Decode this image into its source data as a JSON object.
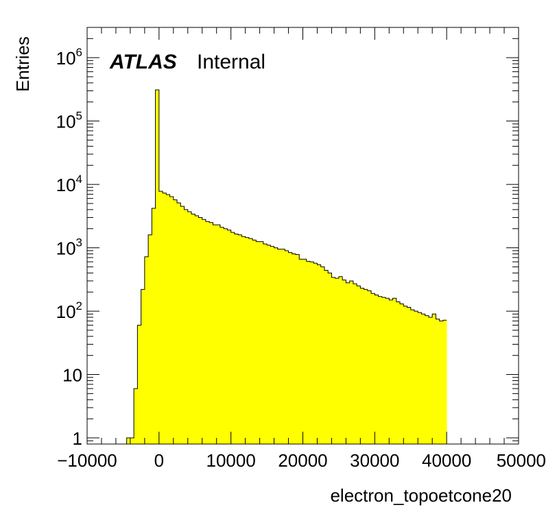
{
  "chart_data": {
    "type": "bar",
    "histogram": true,
    "xlabel": "electron_topoetcone20",
    "ylabel": "Entries",
    "annotation": {
      "bold": "ATLAS",
      "normal": "Internal"
    },
    "xlim": [
      -10000,
      50000
    ],
    "ylim": [
      0.8,
      3000000
    ],
    "yscale": "log",
    "bin_width": 500,
    "bin_start": -10000,
    "fill_color": "#ffff00",
    "line_color": "#000000",
    "x_ticks": [
      {
        "value": -10000,
        "label": "−10000"
      },
      {
        "value": 0,
        "label": "0"
      },
      {
        "value": 10000,
        "label": "10000"
      },
      {
        "value": 20000,
        "label": "20000"
      },
      {
        "value": 30000,
        "label": "30000"
      },
      {
        "value": 40000,
        "label": "40000"
      },
      {
        "value": 50000,
        "label": "50000"
      }
    ],
    "y_ticks": [
      {
        "value": 1,
        "label": "1",
        "exp": ""
      },
      {
        "value": 10,
        "label": "10",
        "exp": ""
      },
      {
        "value": 100,
        "label": "10",
        "exp": "2"
      },
      {
        "value": 1000,
        "label": "10",
        "exp": "3"
      },
      {
        "value": 10000,
        "label": "10",
        "exp": "4"
      },
      {
        "value": 100000,
        "label": "10",
        "exp": "5"
      },
      {
        "value": 1000000,
        "label": "10",
        "exp": "6"
      }
    ],
    "values": [
      0,
      0,
      0,
      0,
      0,
      0,
      0,
      0,
      0,
      0,
      0,
      1,
      1,
      6,
      60,
      220,
      720,
      1600,
      4200,
      310000,
      7800,
      7300,
      6900,
      6400,
      5700,
      5100,
      4500,
      4000,
      3700,
      3400,
      3200,
      3000,
      2800,
      2600,
      2500,
      2300,
      2300,
      2100,
      2000,
      1900,
      1750,
      1650,
      1600,
      1500,
      1450,
      1400,
      1320,
      1250,
      1250,
      1150,
      1100,
      1050,
      1000,
      950,
      950,
      900,
      840,
      800,
      780,
      660,
      660,
      610,
      600,
      570,
      540,
      500,
      440,
      400,
      340,
      330,
      350,
      310,
      280,
      300,
      270,
      250,
      230,
      220,
      210,
      190,
      180,
      170,
      165,
      160,
      150,
      160,
      140,
      130,
      120,
      115,
      105,
      100,
      95,
      90,
      85,
      80,
      90,
      75,
      70,
      72
    ]
  }
}
